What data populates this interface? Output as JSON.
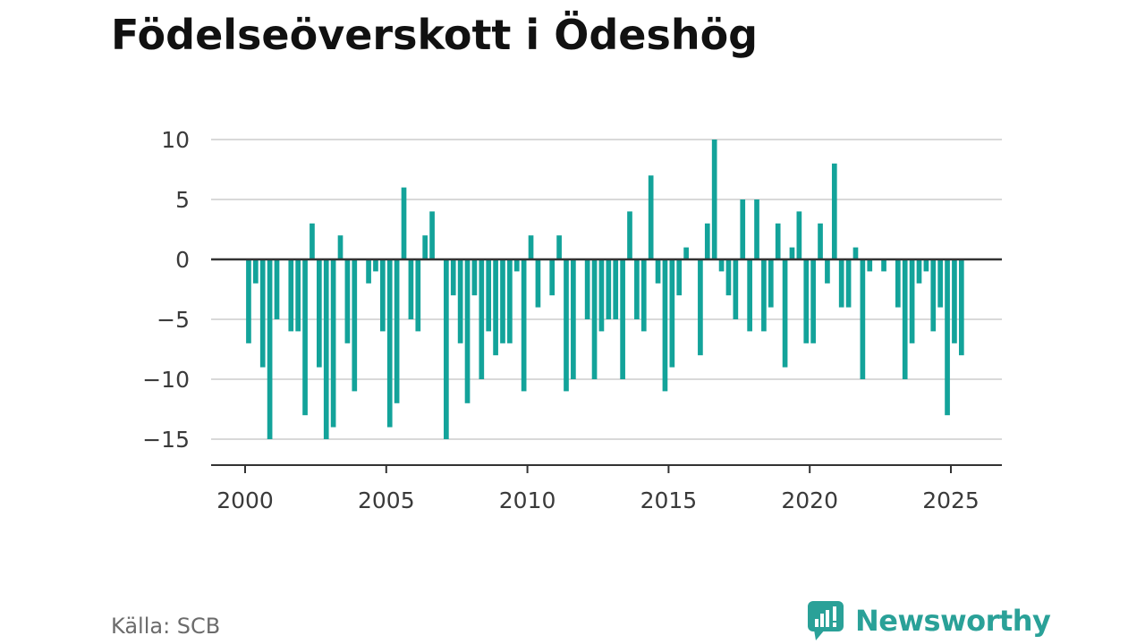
{
  "title": "Födelseöverskott i Ödeshög",
  "source": "Källa: SCB",
  "brand": {
    "name": "Newsworthy",
    "icon": "newsworthy-logo-icon",
    "color": "#2aa198"
  },
  "colors": {
    "bar": "#13a39a",
    "grid": "#d9d9d9",
    "zero_line": "#333333"
  },
  "chart_data": {
    "type": "bar",
    "title": "Födelseöverskott i Ödeshög",
    "xlabel": "",
    "ylabel": "",
    "ylim": [
      -17.2,
      10
    ],
    "yticks": [
      10,
      5,
      0,
      -5,
      -10,
      -15
    ],
    "ytick_labels": [
      "10",
      "5",
      "0",
      "−5",
      "−10",
      "−15"
    ],
    "xlim": [
      1999.5,
      2026.4
    ],
    "xticks": [
      2000,
      2005,
      2010,
      2015,
      2020,
      2025
    ],
    "grid": true,
    "legend": "none",
    "x": [
      2000.125,
      2000.375,
      2000.625,
      2000.875,
      2001.125,
      2001.375,
      2001.625,
      2001.875,
      2002.125,
      2002.375,
      2002.625,
      2002.875,
      2003.125,
      2003.375,
      2003.625,
      2003.875,
      2004.125,
      2004.375,
      2004.625,
      2004.875,
      2005.125,
      2005.375,
      2005.625,
      2005.875,
      2006.125,
      2006.375,
      2006.625,
      2006.875,
      2007.125,
      2007.375,
      2007.625,
      2007.875,
      2008.125,
      2008.375,
      2008.625,
      2008.875,
      2009.125,
      2009.375,
      2009.625,
      2009.875,
      2010.125,
      2010.375,
      2010.625,
      2010.875,
      2011.125,
      2011.375,
      2011.625,
      2011.875,
      2012.125,
      2012.375,
      2012.625,
      2012.875,
      2013.125,
      2013.375,
      2013.625,
      2013.875,
      2014.125,
      2014.375,
      2014.625,
      2014.875,
      2015.125,
      2015.375,
      2015.625,
      2015.875,
      2016.125,
      2016.375,
      2016.625,
      2016.875,
      2017.125,
      2017.375,
      2017.625,
      2017.875,
      2018.125,
      2018.375,
      2018.625,
      2018.875,
      2019.125,
      2019.375,
      2019.625,
      2019.875,
      2020.125,
      2020.375,
      2020.625,
      2020.875,
      2021.125,
      2021.375,
      2021.625,
      2021.875,
      2022.125,
      2022.375,
      2022.625,
      2022.875,
      2023.125,
      2023.375,
      2023.625,
      2023.875,
      2024.125,
      2024.375,
      2024.625,
      2024.875,
      2025.125,
      2025.375
    ],
    "values": [
      -7,
      -2,
      -9,
      -15,
      -5,
      0,
      -6,
      -6,
      -13,
      3,
      -9,
      -15,
      -14,
      2,
      -7,
      -11,
      0,
      -2,
      -1,
      -6,
      -14,
      -12,
      6,
      -5,
      -6,
      2,
      4,
      0,
      -15,
      -3,
      -7,
      -12,
      -3,
      -10,
      -6,
      -8,
      -7,
      -7,
      -1,
      -11,
      2,
      -4,
      0,
      -3,
      2,
      -11,
      -10,
      0,
      -5,
      -10,
      -6,
      -5,
      -5,
      -10,
      4,
      -5,
      -6,
      7,
      -2,
      -11,
      -9,
      -3,
      1,
      0,
      -8,
      3,
      10,
      -1,
      -3,
      -5,
      5,
      -6,
      5,
      -6,
      -4,
      3,
      -9,
      1,
      4,
      -7,
      -7,
      3,
      -2,
      8,
      -4,
      -4,
      1,
      -10,
      -1,
      0,
      -1,
      0,
      -4,
      -10,
      -7,
      -2,
      -1,
      -6,
      -4,
      -13,
      -7,
      -8
    ]
  }
}
